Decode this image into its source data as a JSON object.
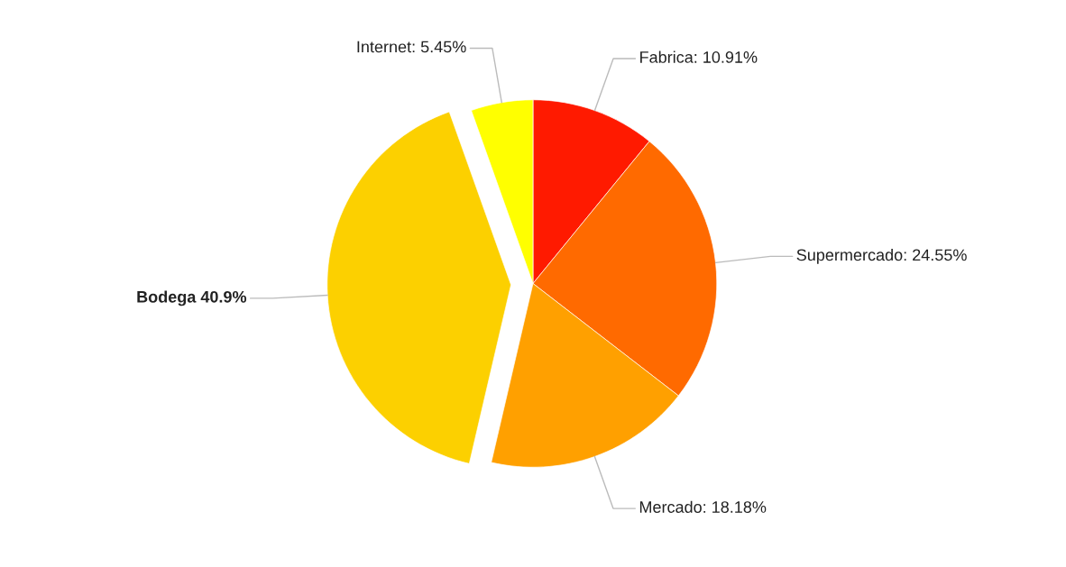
{
  "chart_data": {
    "type": "pie",
    "categories": [
      "Fabrica: 10.91%",
      "Supermercado: 24.55%",
      "Mercado: 18.18%",
      "Bodega 40.9%",
      "Internet: 5.45%"
    ],
    "values": [
      10.91,
      24.55,
      18.18,
      40.9,
      5.45
    ],
    "colors": [
      "#ff1a00",
      "#ff6a00",
      "#ffa000",
      "#fcd000",
      "#ffff00"
    ]
  }
}
